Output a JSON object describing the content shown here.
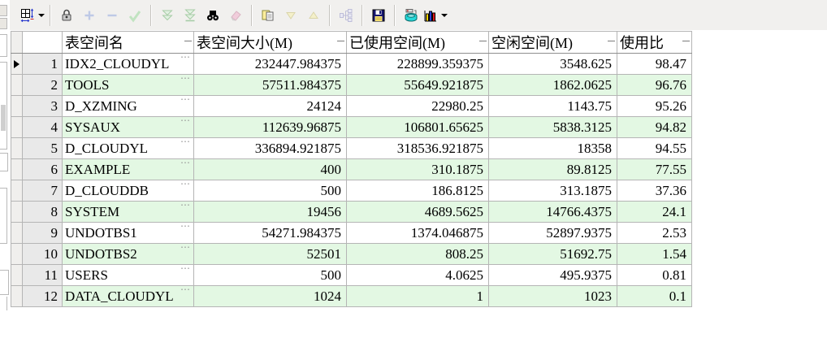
{
  "toolbar": {
    "background": "#f1f0ee",
    "items": [
      {
        "name": "grid-options",
        "icon": "grid-icon",
        "enabled": true,
        "dropdown": true
      },
      {
        "separator": true
      },
      {
        "name": "lock-record",
        "icon": "lock-icon",
        "enabled": true
      },
      {
        "name": "insert-record",
        "icon": "plus-icon",
        "enabled": false
      },
      {
        "name": "delete-record",
        "icon": "minus-icon",
        "enabled": false
      },
      {
        "name": "post-changes",
        "icon": "check-icon",
        "enabled": false
      },
      {
        "separator": true
      },
      {
        "name": "fetch-next-page",
        "icon": "double-chevron-down-icon",
        "enabled": false
      },
      {
        "name": "fetch-all",
        "icon": "double-chevron-down-bar-icon",
        "enabled": false
      },
      {
        "name": "find",
        "icon": "binoculars-icon",
        "enabled": true
      },
      {
        "name": "clear",
        "icon": "eraser-icon",
        "enabled": false
      },
      {
        "separator": true
      },
      {
        "name": "copy-results",
        "icon": "copy-icon",
        "enabled": true
      },
      {
        "name": "move-down",
        "icon": "triangle-down-icon",
        "enabled": false
      },
      {
        "name": "move-up",
        "icon": "triangle-up-icon",
        "enabled": false
      },
      {
        "separator": true
      },
      {
        "name": "single-record-view",
        "icon": "tree-icon",
        "enabled": false
      },
      {
        "separator": true
      },
      {
        "name": "save-results",
        "icon": "floppy-icon",
        "enabled": true
      },
      {
        "separator": true
      },
      {
        "name": "print",
        "icon": "printer-icon",
        "enabled": true
      },
      {
        "name": "chart",
        "icon": "bar-chart-icon",
        "enabled": true,
        "dropdown": true
      }
    ]
  },
  "grid": {
    "current_row": 1,
    "columns": [
      {
        "key": "name",
        "label": "表空间名"
      },
      {
        "key": "size",
        "label": "表空间大小(M)"
      },
      {
        "key": "used",
        "label": "已使用空间(M)"
      },
      {
        "key": "free",
        "label": "空闲空间(M)"
      },
      {
        "key": "ratio",
        "label": "使用比"
      }
    ],
    "rows": [
      {
        "num": "1",
        "name": "IDX2_CLOUDYL",
        "size": "232447.984375",
        "used": "228899.359375",
        "free": "3548.625",
        "ratio": "98.47"
      },
      {
        "num": "2",
        "name": "TOOLS",
        "size": "57511.984375",
        "used": "55649.921875",
        "free": "1862.0625",
        "ratio": "96.76"
      },
      {
        "num": "3",
        "name": "D_XZMING",
        "size": "24124",
        "used": "22980.25",
        "free": "1143.75",
        "ratio": "95.26"
      },
      {
        "num": "4",
        "name": "SYSAUX",
        "size": "112639.96875",
        "used": "106801.65625",
        "free": "5838.3125",
        "ratio": "94.82"
      },
      {
        "num": "5",
        "name": "D_CLOUDYL",
        "size": "336894.921875",
        "used": "318536.921875",
        "free": "18358",
        "ratio": "94.55"
      },
      {
        "num": "6",
        "name": "EXAMPLE",
        "size": "400",
        "used": "310.1875",
        "free": "89.8125",
        "ratio": "77.55"
      },
      {
        "num": "7",
        "name": "D_CLOUDDB",
        "size": "500",
        "used": "186.8125",
        "free": "313.1875",
        "ratio": "37.36"
      },
      {
        "num": "8",
        "name": "SYSTEM",
        "size": "19456",
        "used": "4689.5625",
        "free": "14766.4375",
        "ratio": "24.1"
      },
      {
        "num": "9",
        "name": "UNDOTBS1",
        "size": "54271.984375",
        "used": "1374.046875",
        "free": "52897.9375",
        "ratio": "2.53"
      },
      {
        "num": "10",
        "name": "UNDOTBS2",
        "size": "52501",
        "used": "808.25",
        "free": "51692.75",
        "ratio": "1.54"
      },
      {
        "num": "11",
        "name": "USERS",
        "size": "500",
        "used": "4.0625",
        "free": "495.9375",
        "ratio": "0.81"
      },
      {
        "num": "12",
        "name": "DATA_CLOUDYL",
        "size": "1024",
        "used": "1",
        "free": "1023",
        "ratio": "0.1"
      }
    ],
    "ellipsis_glyph": "⋯",
    "colors": {
      "stripe": "#e3f8e3",
      "rownum_bg": "#e9e9e9",
      "grid_line": "#b5b5b5",
      "header_bg": "#ffffff",
      "toolbar_bg": "#f1f0ee"
    }
  }
}
